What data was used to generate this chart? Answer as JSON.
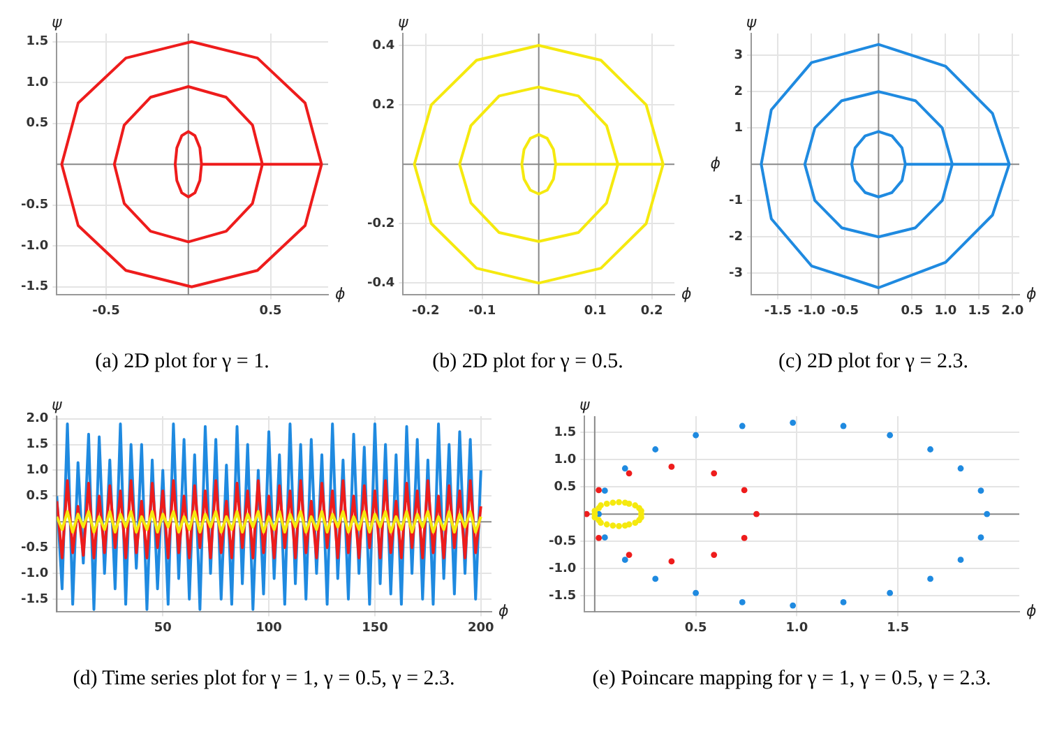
{
  "chart_data": [
    {
      "type": "line",
      "title": "(a) 2D plot for γ = 1.",
      "xlabel": "ϕ",
      "ylabel": "ψ",
      "grid": true,
      "marker": "none",
      "xlim": [
        -0.8,
        0.85
      ],
      "ylim": [
        -1.6,
        1.6
      ],
      "xticks": [
        -0.5,
        0.5
      ],
      "yticks": [
        -1.5,
        {
          "value": -1,
          "label": "-1.0"
        },
        -0.5,
        0.5,
        {
          "value": 1,
          "label": "1.0"
        },
        1.5
      ],
      "series": [
        {
          "color": "#ee1c1c",
          "x": [
            0.81,
            0.71,
            0.42,
            0.02,
            -0.38,
            -0.67,
            -0.77,
            -0.67,
            -0.38,
            0.02,
            0.42,
            0.71,
            0.81,
            0.45,
            0.39,
            0.23,
            0,
            -0.23,
            -0.39,
            -0.45,
            -0.39,
            -0.23,
            0,
            0.23,
            0.39,
            0.45,
            0.08,
            0.07,
            0.04,
            0,
            -0.04,
            -0.07,
            -0.08,
            -0.07,
            -0.04,
            0,
            0.04,
            0.07,
            0.08
          ],
          "values": [
            0,
            0.75,
            1.3,
            1.5,
            1.3,
            0.75,
            0,
            -0.75,
            -1.3,
            -1.5,
            -1.3,
            -0.75,
            0,
            0,
            0.48,
            0.82,
            0.95,
            0.82,
            0.48,
            0,
            -0.48,
            -0.82,
            -0.95,
            -0.82,
            -0.48,
            0,
            0,
            0.2,
            0.35,
            0.4,
            0.35,
            0.2,
            0,
            -0.2,
            -0.35,
            -0.4,
            -0.35,
            -0.2,
            0
          ]
        }
      ]
    },
    {
      "type": "line",
      "title": "(b) 2D plot for γ = 0.5.",
      "xlabel": "ϕ",
      "ylabel": "ψ",
      "grid": true,
      "marker": "none",
      "xlim": [
        -0.24,
        0.24
      ],
      "ylim": [
        -0.44,
        0.44
      ],
      "xticks": [
        -0.2,
        -0.1,
        0.1,
        0.2
      ],
      "yticks": [
        -0.4,
        -0.2,
        0.2,
        0.4
      ],
      "series": [
        {
          "color": "#f5e90f",
          "x": [
            0.22,
            0.19,
            0.11,
            0,
            -0.11,
            -0.19,
            -0.22,
            -0.19,
            -0.11,
            0,
            0.11,
            0.19,
            0.22,
            0.14,
            0.12,
            0.07,
            0,
            -0.07,
            -0.12,
            -0.14,
            -0.12,
            -0.07,
            0,
            0.07,
            0.12,
            0.14,
            0.03,
            0.026,
            0.015,
            0,
            -0.015,
            -0.026,
            -0.03,
            -0.026,
            -0.015,
            0,
            0.015,
            0.026,
            0.03
          ],
          "values": [
            0,
            0.2,
            0.35,
            0.4,
            0.35,
            0.2,
            0,
            -0.2,
            -0.35,
            -0.4,
            -0.35,
            -0.2,
            0,
            0,
            0.13,
            0.23,
            0.26,
            0.23,
            0.13,
            0,
            -0.13,
            -0.23,
            -0.26,
            -0.23,
            -0.13,
            0,
            0,
            0.05,
            0.087,
            0.1,
            0.087,
            0.05,
            0,
            -0.05,
            -0.087,
            -0.1,
            -0.087,
            -0.05,
            0
          ]
        }
      ]
    },
    {
      "type": "line",
      "title": "(c) 2D plot for γ = 2.3.",
      "xlabel": "ϕ",
      "ylabel": "ψ",
      "annotations": [
        "ϕ"
      ],
      "grid": true,
      "marker": "none",
      "xlim": [
        -1.9,
        2.1
      ],
      "ylim": [
        -3.6,
        3.6
      ],
      "xticks": [
        -1.5,
        {
          "value": -1,
          "label": "-1.0"
        },
        -0.5,
        0.5,
        {
          "value": 1,
          "label": "1.0"
        },
        1.5,
        {
          "value": 2,
          "label": "2.0"
        }
      ],
      "yticks": [
        -3,
        -2,
        -1,
        1,
        2,
        3
      ],
      "series": [
        {
          "color": "#1f8ae0",
          "x": [
            1.95,
            1.7,
            1.0,
            0,
            -1.0,
            -1.6,
            -1.75,
            -1.6,
            -1.0,
            0,
            1.0,
            1.7,
            1.95,
            1.1,
            0.95,
            0.55,
            0,
            -0.55,
            -0.95,
            -1.1,
            -0.95,
            -0.55,
            0,
            0.55,
            0.95,
            1.1,
            0.4,
            0.35,
            0.2,
            0,
            -0.2,
            -0.35,
            -0.4,
            -0.35,
            -0.2,
            0,
            0.2,
            0.35,
            0.4
          ],
          "values": [
            0,
            1.4,
            2.7,
            3.3,
            2.8,
            1.5,
            0,
            -1.5,
            -2.8,
            -3.4,
            -2.7,
            -1.4,
            0,
            0,
            1,
            1.75,
            2,
            1.75,
            1,
            0,
            -1,
            -1.75,
            -2,
            -1.75,
            -1,
            0,
            0,
            0.45,
            0.78,
            0.9,
            0.78,
            0.45,
            0,
            -0.45,
            -0.78,
            -0.9,
            -0.78,
            -0.45,
            0
          ]
        }
      ]
    },
    {
      "type": "line",
      "title": "(d) Time series plot for γ = 1, γ = 0.5, γ = 2.3.",
      "xlabel": "ϕ",
      "ylabel": "ψ",
      "grid": true,
      "marker": "none",
      "xlim": [
        0,
        205
      ],
      "ylim": [
        -1.75,
        2.05
      ],
      "xticks": [
        50,
        100,
        150,
        200
      ],
      "yticks": [
        -1.5,
        {
          "value": -1,
          "label": "-1.0"
        },
        -0.5,
        0.5,
        {
          "value": 1,
          "label": "1.0"
        },
        1.5,
        {
          "value": 2,
          "label": "2.0"
        }
      ],
      "x": [
        0,
        2.5,
        5,
        7.5,
        10,
        12.5,
        15,
        17.5,
        20,
        22.5,
        25,
        27.5,
        30,
        32.5,
        35,
        37.5,
        40,
        42.5,
        45,
        47.5,
        50,
        52.5,
        55,
        57.5,
        60,
        62.5,
        65,
        67.5,
        70,
        72.5,
        75,
        77.5,
        80,
        82.5,
        85,
        87.5,
        90,
        92.5,
        95,
        97.5,
        100,
        102.5,
        105,
        107.5,
        110,
        112.5,
        115,
        117.5,
        120,
        122.5,
        125,
        127.5,
        130,
        132.5,
        135,
        137.5,
        140,
        142.5,
        145,
        147.5,
        150,
        152.5,
        155,
        157.5,
        160,
        162.5,
        165,
        167.5,
        170,
        172.5,
        175,
        177.5,
        180,
        182.5,
        185,
        187.5,
        190,
        192.5,
        195,
        197.5,
        200
      ],
      "series": [
        {
          "color": "#1f8ae0",
          "values": [
            0.5,
            -1.3,
            1.9,
            -1.6,
            1.15,
            -0.8,
            1.7,
            -1.7,
            1.65,
            -1.0,
            1.2,
            -1.3,
            1.9,
            -1.6,
            1.5,
            -0.9,
            1.5,
            -1.7,
            1.2,
            -1.3,
            1.0,
            -1.6,
            1.9,
            -1.1,
            1.6,
            -1.5,
            1.3,
            -1.7,
            1.85,
            -1.0,
            1.6,
            -1.5,
            1.1,
            -1.6,
            1.85,
            -1.2,
            1.5,
            -1.7,
            1.0,
            -1.4,
            1.75,
            -1.1,
            1.3,
            -1.6,
            1.9,
            -1.2,
            1.5,
            -1.5,
            1.6,
            -1.0,
            1.3,
            -1.6,
            1.9,
            -1.1,
            1.2,
            -1.5,
            1.7,
            -1.0,
            1.45,
            -1.6,
            1.9,
            -1.2,
            1.5,
            -1.4,
            1.3,
            -1.6,
            1.85,
            -1.0,
            1.6,
            -1.5,
            1.2,
            -1.6,
            1.9,
            -1.1,
            1.5,
            -1.4,
            1.75,
            -1.0,
            1.6,
            -1.5,
            1.0
          ]
        },
        {
          "color": "#ee1c1c",
          "values": [
            0.4,
            -0.7,
            0.8,
            -0.6,
            0.3,
            -0.65,
            0.75,
            -0.7,
            0.5,
            -0.6,
            0.7,
            -0.5,
            0.6,
            -0.7,
            0.8,
            -0.6,
            0.4,
            -0.7,
            0.75,
            -0.5,
            0.6,
            -0.7,
            0.8,
            -0.6,
            0.5,
            -0.7,
            0.7,
            -0.5,
            0.6,
            -0.7,
            0.8,
            -0.6,
            0.4,
            -0.7,
            0.75,
            -0.5,
            0.6,
            -0.7,
            0.8,
            -0.6,
            0.5,
            -0.7,
            0.7,
            -0.5,
            0.6,
            -0.7,
            0.8,
            -0.6,
            0.4,
            -0.7,
            0.75,
            -0.5,
            0.6,
            -0.7,
            0.8,
            -0.6,
            0.5,
            -0.7,
            0.7,
            -0.5,
            0.6,
            -0.7,
            0.8,
            -0.6,
            0.4,
            -0.7,
            0.75,
            -0.5,
            0.6,
            -0.7,
            0.8,
            -0.6,
            0.5,
            -0.7,
            0.7,
            -0.5,
            0.6,
            -0.7,
            0.8,
            -0.6,
            0.3
          ]
        },
        {
          "color": "#f5e90f",
          "values": [
            0.1,
            -0.15,
            0.2,
            -0.2,
            0.15,
            -0.1,
            0.2,
            -0.2,
            0.1,
            -0.15,
            0.2,
            -0.2,
            0.15,
            -0.1,
            0.2,
            -0.2,
            0.1,
            -0.15,
            0.2,
            -0.2,
            0.15,
            -0.1,
            0.2,
            -0.2,
            0.1,
            -0.15,
            0.2,
            -0.2,
            0.15,
            -0.1,
            0.2,
            -0.2,
            0.1,
            -0.15,
            0.2,
            -0.2,
            0.15,
            -0.1,
            0.2,
            -0.2,
            0.1,
            -0.15,
            0.2,
            -0.2,
            0.15,
            -0.1,
            0.2,
            -0.2,
            0.1,
            -0.15,
            0.2,
            -0.2,
            0.15,
            -0.1,
            0.2,
            -0.2,
            0.1,
            -0.15,
            0.2,
            -0.2,
            0.15,
            -0.1,
            0.2,
            -0.2,
            0.1,
            -0.15,
            0.2,
            -0.2,
            0.15,
            -0.1,
            0.2,
            -0.2,
            0.1,
            -0.15,
            0.2,
            -0.2,
            0.15,
            -0.1,
            0.2,
            -0.2,
            0.1
          ]
        }
      ]
    },
    {
      "type": "scatter",
      "title": "(e) Poincare mapping for γ = 1, γ = 0.5, γ = 2.3.",
      "xlabel": "ϕ",
      "ylabel": "ψ",
      "grid": true,
      "marker": "circle",
      "xlim": [
        -0.05,
        2.1
      ],
      "ylim": [
        -1.8,
        1.8
      ],
      "xticks": [
        0.5,
        {
          "value": 1,
          "label": "1.0"
        },
        1.5
      ],
      "yticks": [
        -1.5,
        {
          "value": -1,
          "label": "-1.0"
        },
        -0.5,
        0.5,
        {
          "value": 1,
          "label": "1.0"
        },
        1.5
      ],
      "series": [
        {
          "color": "#1f8ae0",
          "x": [
            1.94,
            1.91,
            1.81,
            1.66,
            1.46,
            1.23,
            0.98,
            0.73,
            0.5,
            0.3,
            0.15,
            0.05,
            0.02,
            0.05,
            0.15,
            0.3,
            0.5,
            0.73,
            0.98,
            1.23,
            1.46,
            1.66,
            1.81,
            1.91
          ],
          "values": [
            0,
            0.43,
            0.84,
            1.19,
            1.45,
            1.62,
            1.68,
            1.62,
            1.45,
            1.19,
            0.84,
            0.43,
            0,
            -0.43,
            -0.84,
            -1.19,
            -1.45,
            -1.62,
            -1.68,
            -1.62,
            -1.45,
            -1.19,
            -0.84,
            -0.43
          ]
        },
        {
          "color": "#ee1c1c",
          "x": [
            0.8,
            0.74,
            0.59,
            0.38,
            0.17,
            0.02,
            -0.04,
            0.02,
            0.17,
            0.38,
            0.59,
            0.74
          ],
          "values": [
            0,
            0.44,
            0.75,
            0.87,
            0.75,
            0.44,
            0,
            -0.44,
            -0.75,
            -0.87,
            -0.75,
            -0.44
          ]
        },
        {
          "color": "#f5e90f",
          "x": [
            0.23,
            0.23,
            0.22,
            0.2,
            0.17,
            0.15,
            0.12,
            0.09,
            0.06,
            0.03,
            0.02,
            0,
            0,
            0,
            0.02,
            0.03,
            0.06,
            0.09,
            0.12,
            0.15,
            0.17,
            0.2,
            0.22,
            0.23
          ],
          "values": [
            0,
            0.06,
            0.11,
            0.16,
            0.19,
            0.21,
            0.22,
            0.21,
            0.19,
            0.16,
            0.11,
            0.06,
            0,
            -0.06,
            -0.11,
            -0.16,
            -0.19,
            -0.21,
            -0.22,
            -0.21,
            -0.19,
            -0.16,
            -0.11,
            -0.06
          ]
        }
      ]
    }
  ]
}
